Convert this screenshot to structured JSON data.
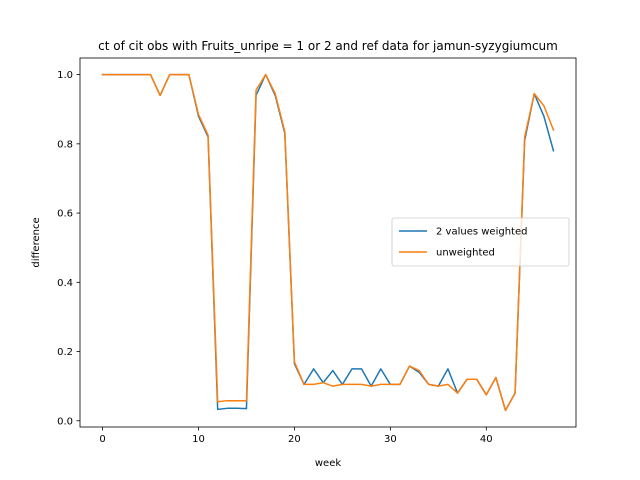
{
  "chart_data": {
    "type": "line",
    "title": "ct of cit obs with Fruits_unripe = 1 or 2 and ref data for jamun-syzygiumcum",
    "xlabel": "week",
    "ylabel": "difference",
    "xlim": [
      -2.35,
      49.35
    ],
    "ylim": [
      -0.018,
      1.048
    ],
    "xticks": [
      0,
      10,
      20,
      30,
      40
    ],
    "yticks": [
      0.0,
      0.2,
      0.4,
      0.6,
      0.8,
      1.0
    ],
    "legend_position": "center-right",
    "series": [
      {
        "name": "2 values weighted",
        "color": "#1f77b4",
        "x": [
          0,
          1,
          2,
          3,
          4,
          5,
          6,
          7,
          8,
          9,
          10,
          11,
          12,
          13,
          14,
          15,
          16,
          17,
          18,
          19,
          20,
          21,
          22,
          23,
          24,
          25,
          26,
          27,
          28,
          29,
          30,
          31,
          32,
          33,
          34,
          35,
          36,
          37,
          38,
          39,
          40,
          41,
          42,
          43,
          44,
          45,
          46,
          47
        ],
        "values": [
          1.0,
          1.0,
          1.0,
          1.0,
          1.0,
          1.0,
          0.94,
          1.0,
          1.0,
          1.0,
          0.88,
          0.82,
          0.033,
          0.036,
          0.036,
          0.035,
          0.94,
          1.0,
          0.94,
          0.83,
          0.165,
          0.105,
          0.15,
          0.11,
          0.145,
          0.105,
          0.15,
          0.15,
          0.1,
          0.15,
          0.105,
          0.105,
          0.158,
          0.14,
          0.105,
          0.1,
          0.15,
          0.08,
          0.12,
          0.12,
          0.075,
          0.125,
          0.03,
          0.08,
          0.81,
          0.945,
          0.88,
          0.78
        ]
      },
      {
        "name": "unweighted",
        "color": "#ff7f0e",
        "x": [
          0,
          1,
          2,
          3,
          4,
          5,
          6,
          7,
          8,
          9,
          10,
          11,
          12,
          13,
          14,
          15,
          16,
          17,
          18,
          19,
          20,
          21,
          22,
          23,
          24,
          25,
          26,
          27,
          28,
          29,
          30,
          31,
          32,
          33,
          34,
          35,
          36,
          37,
          38,
          39,
          40,
          41,
          42,
          43,
          44,
          45,
          46,
          47
        ],
        "values": [
          1.0,
          1.0,
          1.0,
          1.0,
          1.0,
          1.0,
          0.94,
          1.0,
          1.0,
          1.0,
          0.885,
          0.825,
          0.055,
          0.058,
          0.058,
          0.058,
          0.955,
          1.0,
          0.945,
          0.835,
          0.17,
          0.105,
          0.105,
          0.11,
          0.1,
          0.105,
          0.105,
          0.105,
          0.1,
          0.105,
          0.105,
          0.105,
          0.158,
          0.145,
          0.105,
          0.1,
          0.105,
          0.08,
          0.12,
          0.12,
          0.075,
          0.125,
          0.03,
          0.08,
          0.82,
          0.945,
          0.91,
          0.84
        ]
      }
    ]
  }
}
